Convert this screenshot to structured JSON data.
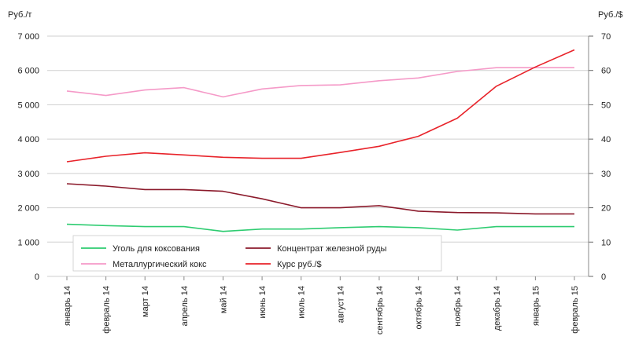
{
  "chart_data": {
    "type": "line",
    "left_unit": "Руб./т",
    "right_unit": "Руб./$",
    "categories": [
      "январь 14",
      "февраль 14",
      "март 14",
      "апрель 14",
      "май 14",
      "июнь 14",
      "июль 14",
      "август 14",
      "сентябрь 14",
      "октябрь 14",
      "ноябрь 14",
      "декабрь 14",
      "январь 15",
      "февраль 15"
    ],
    "left_ticks": [
      "0",
      "1 000",
      "2 000",
      "3 000",
      "4 000",
      "5 000",
      "6 000",
      "7 000"
    ],
    "right_ticks": [
      "0",
      "10",
      "20",
      "30",
      "40",
      "50",
      "60",
      "70"
    ],
    "ylim_left": [
      0,
      7000
    ],
    "ylim_right": [
      0,
      70
    ],
    "grid": true,
    "legend_position": "bottom-left",
    "series": [
      {
        "name": "Уголь для коксования",
        "axis": "left",
        "color": "#2ecc71",
        "values": [
          1520,
          1480,
          1450,
          1450,
          1310,
          1380,
          1380,
          1420,
          1450,
          1420,
          1350,
          1450,
          1450,
          1450
        ]
      },
      {
        "name": "Концентрат железной руды",
        "axis": "left",
        "color": "#8b1a2b",
        "values": [
          2700,
          2630,
          2530,
          2530,
          2480,
          2260,
          2000,
          2000,
          2060,
          1900,
          1860,
          1850,
          1820,
          1820
        ]
      },
      {
        "name": "Металлургический кокс",
        "axis": "left",
        "color": "#f59ac8",
        "values": [
          5400,
          5270,
          5430,
          5500,
          5230,
          5460,
          5560,
          5580,
          5700,
          5780,
          5970,
          6080,
          6080,
          6080
        ]
      },
      {
        "name": "Курс руб./$",
        "axis": "right",
        "color": "#e8232a",
        "values": [
          33.4,
          35.0,
          36.0,
          35.4,
          34.7,
          34.4,
          34.4,
          36.1,
          37.9,
          40.8,
          46.1,
          55.4,
          61.0,
          66.0
        ]
      }
    ]
  }
}
